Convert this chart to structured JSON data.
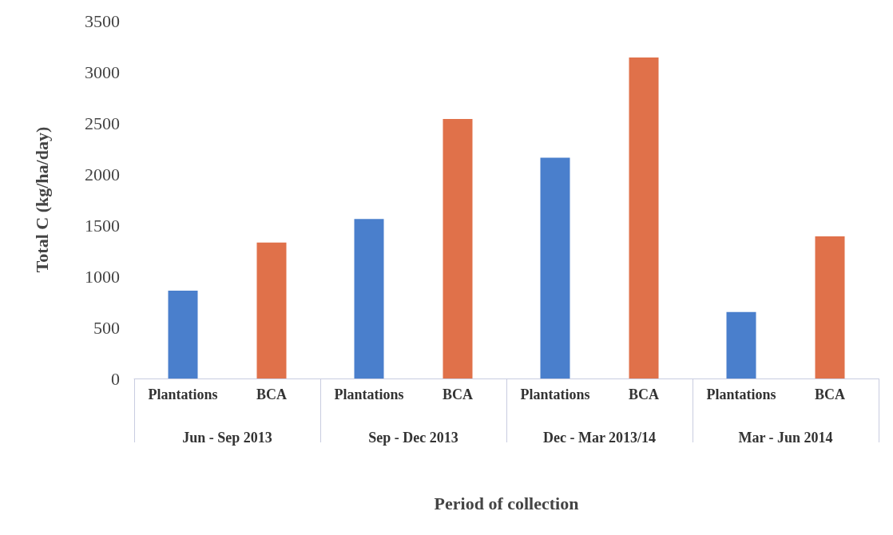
{
  "chart_data": {
    "type": "bar",
    "xlabel": "Period of collection",
    "ylabel": "Total C (kg/ha/day)",
    "categories": [
      "Jun - Sep 2013",
      "Sep - Dec 2013",
      "Dec - Mar 2013/14",
      "Mar - Jun 2014"
    ],
    "series": [
      {
        "name": "Plantations",
        "color": "#4a7fcc",
        "values": [
          860,
          1560,
          2160,
          650
        ]
      },
      {
        "name": "BCA",
        "color": "#e0714a",
        "values": [
          1330,
          2540,
          3140,
          1390
        ]
      }
    ],
    "ylim": [
      0,
      3500
    ],
    "yticks": [
      0,
      500,
      1000,
      1500,
      2000,
      2500,
      3000,
      3500
    ],
    "grid": false,
    "legend": false
  }
}
